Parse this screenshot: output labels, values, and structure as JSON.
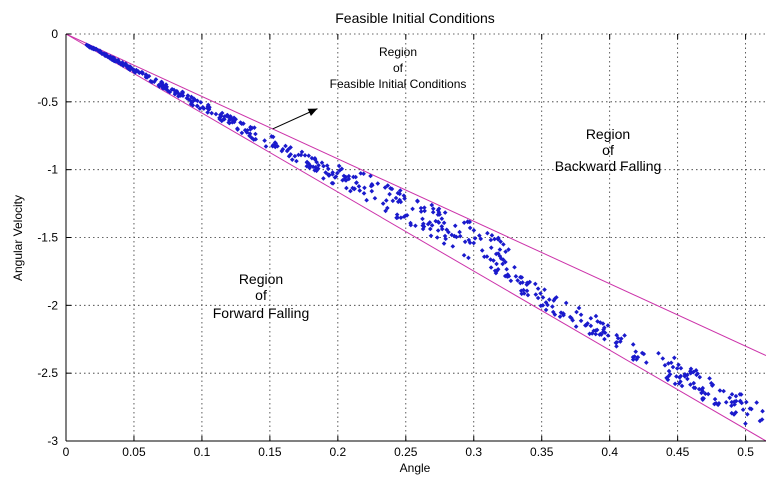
{
  "chart_data": {
    "type": "scatter",
    "title": "Feasible Initial Conditions",
    "xlabel": "Angle",
    "ylabel": "Angular Velocity",
    "xlim": [
      0,
      0.515
    ],
    "ylim": [
      -3,
      0
    ],
    "xticks": [
      0,
      0.05,
      0.1,
      0.15,
      0.2,
      0.25,
      0.3,
      0.35,
      0.4,
      0.45,
      0.5
    ],
    "xtick_labels": [
      "0",
      "0.05",
      "0.1",
      "0.15",
      "0.2",
      "0.25",
      "0.3",
      "0.35",
      "0.4",
      "0.45",
      "0.5"
    ],
    "yticks": [
      0,
      -0.5,
      -1,
      -1.5,
      -2,
      -2.5,
      -3
    ],
    "ytick_labels": [
      "0",
      "-0.5",
      "-1",
      "-1.5",
      "-2",
      "-2.5",
      "-3"
    ],
    "grid": true,
    "colors": {
      "points": "#1a1acc",
      "boundary": "#cc33aa",
      "axis": "#000000",
      "annotation": "#000000"
    },
    "boundaries": [
      {
        "slope": -4.6,
        "points": [
          [
            0,
            0
          ],
          [
            0.515,
            -2.37
          ]
        ]
      },
      {
        "slope": -5.82,
        "points": [
          [
            0,
            0
          ],
          [
            0.515,
            -3.0
          ]
        ]
      }
    ],
    "series": [
      {
        "x_range": [
          0.015,
          0.515
        ],
        "y_range": [
          -0.08,
          -2.95
        ],
        "marker": "diamond",
        "count": 600
      }
    ],
    "annotations": {
      "feasible": [
        "Region",
        "of",
        "Feasible Initial Conditions"
      ],
      "backward": [
        "Region",
        "of",
        "Backward Falling"
      ],
      "forward": [
        "Region",
        "of",
        "Forward Falling"
      ],
      "arrow": {
        "from": [
          0.152,
          -0.7
        ],
        "to": [
          0.185,
          -0.55
        ]
      }
    }
  }
}
